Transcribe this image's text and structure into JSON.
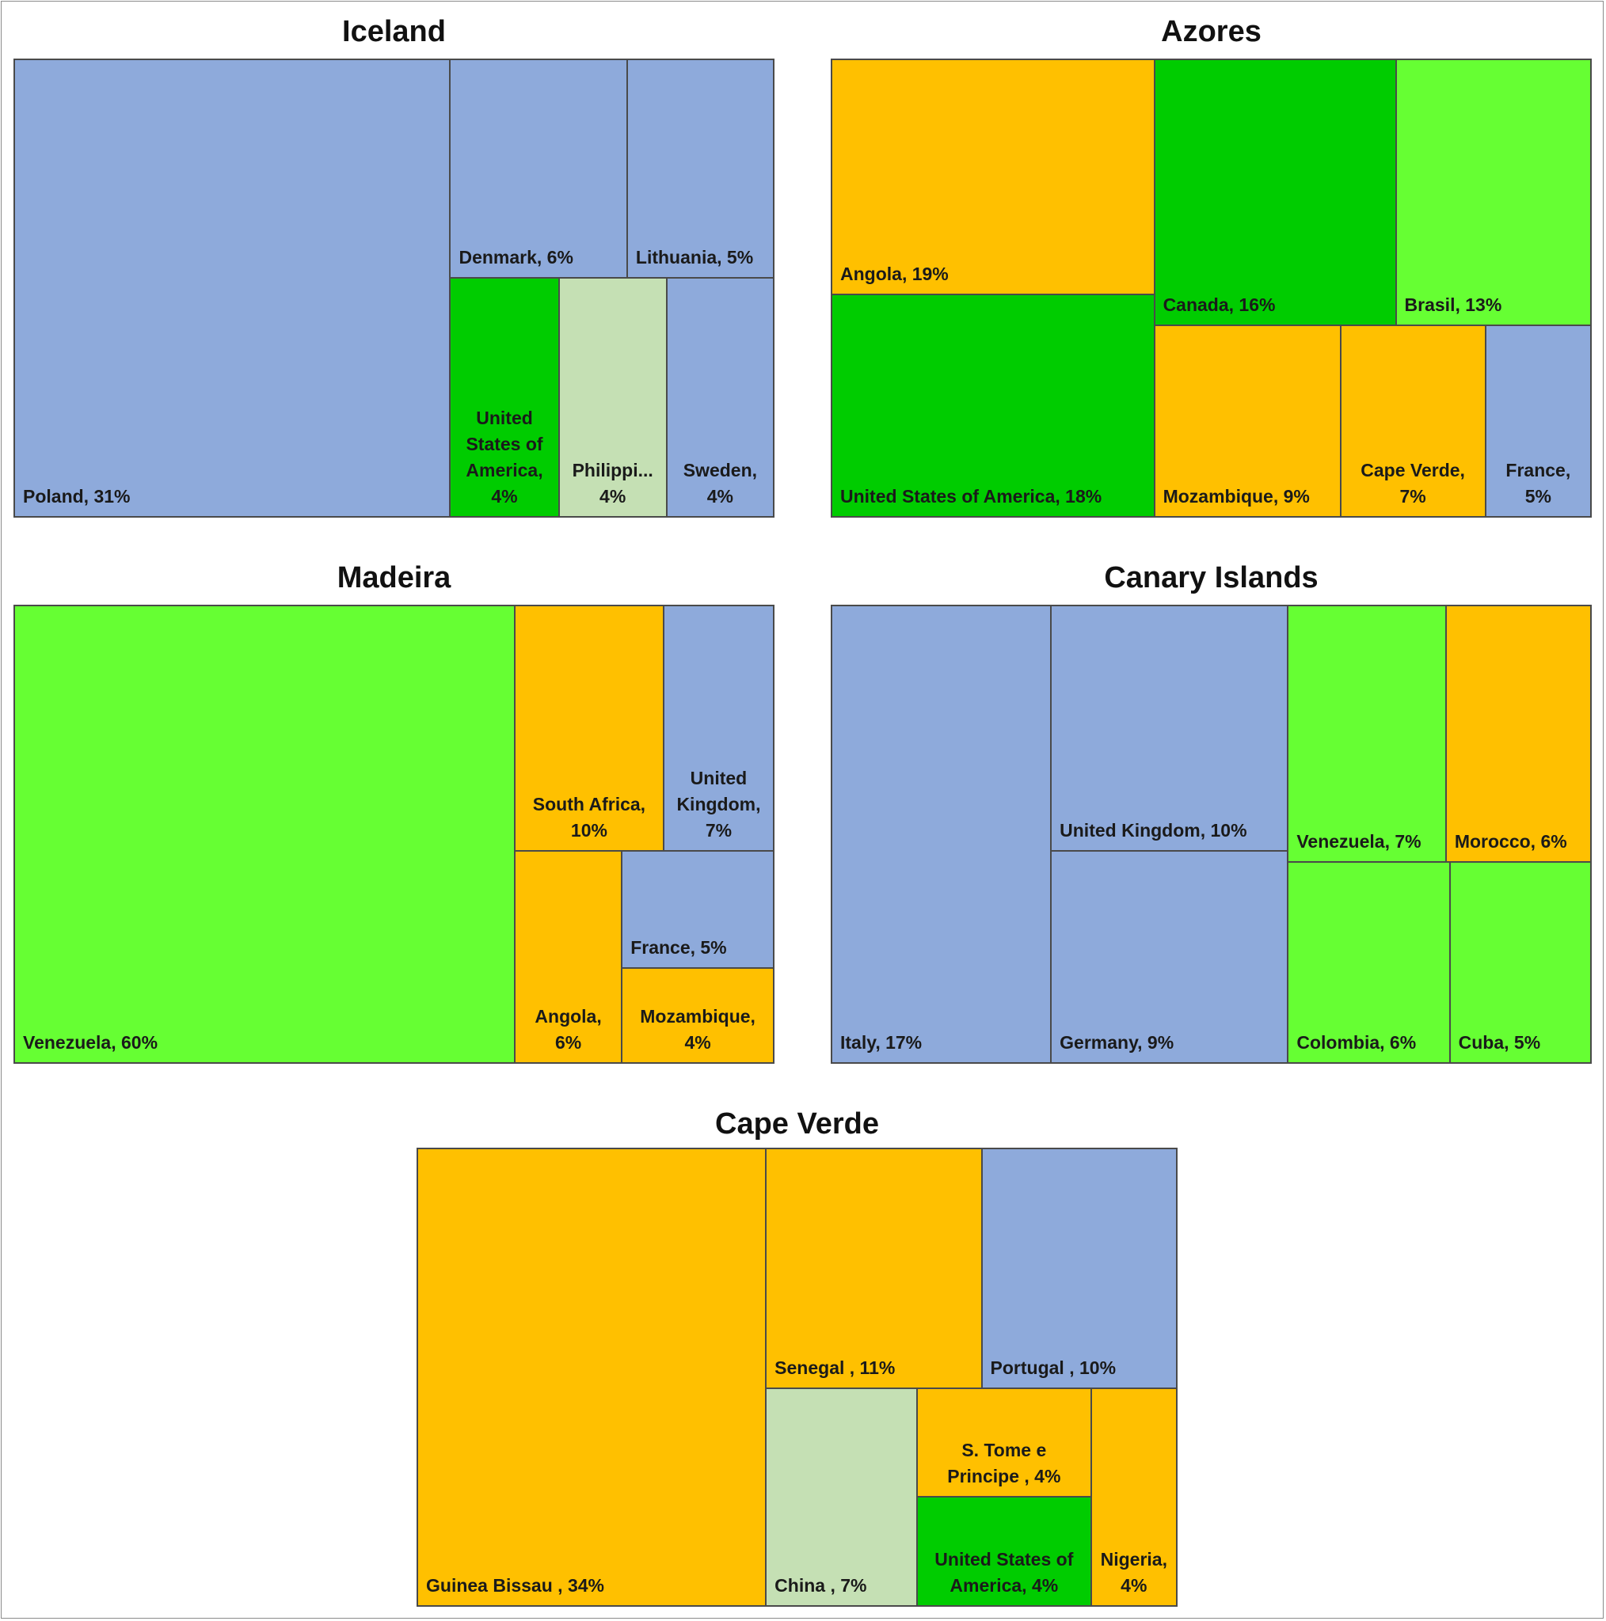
{
  "colors": {
    "blue": "#8eaadb",
    "orange": "#ffc000",
    "green_dark": "#00cc00",
    "green_light": "#66ff33",
    "green_pale": "#c5e0b4"
  },
  "chart_data": [
    {
      "type": "treemap",
      "title": "Iceland",
      "items": [
        {
          "label": "Poland, 31%",
          "name": "Poland",
          "value": 31,
          "color": "blue"
        },
        {
          "label": "Denmark, 6%",
          "name": "Denmark",
          "value": 6,
          "color": "blue"
        },
        {
          "label": "Lithuania, 5%",
          "name": "Lithuania",
          "value": 5,
          "color": "blue"
        },
        {
          "label": "United\nStates of\nAmerica,\n4%",
          "name": "United States of America",
          "value": 4,
          "color": "green_dark"
        },
        {
          "label": "Philippi...\n4%",
          "name": "Philippines",
          "value": 4,
          "color": "green_pale"
        },
        {
          "label": "Sweden,\n4%",
          "name": "Sweden",
          "value": 4,
          "color": "blue"
        }
      ]
    },
    {
      "type": "treemap",
      "title": "Azores",
      "items": [
        {
          "label": "Angola, 19%",
          "name": "Angola",
          "value": 19,
          "color": "orange"
        },
        {
          "label": "United States of America, 18%",
          "name": "United States of America",
          "value": 18,
          "color": "green_dark"
        },
        {
          "label": "Canada, 16%",
          "name": "Canada",
          "value": 16,
          "color": "green_dark"
        },
        {
          "label": "Brasil, 13%",
          "name": "Brasil",
          "value": 13,
          "color": "green_light"
        },
        {
          "label": "Mozambique, 9%",
          "name": "Mozambique",
          "value": 9,
          "color": "orange"
        },
        {
          "label": "Cape Verde,\n7%",
          "name": "Cape Verde",
          "value": 7,
          "color": "orange"
        },
        {
          "label": "France,\n5%",
          "name": "France",
          "value": 5,
          "color": "blue"
        }
      ]
    },
    {
      "type": "treemap",
      "title": "Madeira",
      "items": [
        {
          "label": "Venezuela, 60%",
          "name": "Venezuela",
          "value": 60,
          "color": "green_light"
        },
        {
          "label": "South Africa,\n10%",
          "name": "South Africa",
          "value": 10,
          "color": "orange"
        },
        {
          "label": "United\nKingdom,\n7%",
          "name": "United Kingdom",
          "value": 7,
          "color": "blue"
        },
        {
          "label": "Angola,\n6%",
          "name": "Angola",
          "value": 6,
          "color": "orange"
        },
        {
          "label": "France, 5%",
          "name": "France",
          "value": 5,
          "color": "blue"
        },
        {
          "label": "Mozambique,\n4%",
          "name": "Mozambique",
          "value": 4,
          "color": "orange"
        }
      ]
    },
    {
      "type": "treemap",
      "title": "Canary Islands",
      "items": [
        {
          "label": "Italy, 17%",
          "name": "Italy",
          "value": 17,
          "color": "blue"
        },
        {
          "label": "United Kingdom, 10%",
          "name": "United Kingdom",
          "value": 10,
          "color": "blue"
        },
        {
          "label": "Germany, 9%",
          "name": "Germany",
          "value": 9,
          "color": "blue"
        },
        {
          "label": "Venezuela, 7%",
          "name": "Venezuela",
          "value": 7,
          "color": "green_light"
        },
        {
          "label": "Morocco, 6%",
          "name": "Morocco",
          "value": 6,
          "color": "orange"
        },
        {
          "label": "Colombia, 6%",
          "name": "Colombia",
          "value": 6,
          "color": "green_light"
        },
        {
          "label": "Cuba, 5%",
          "name": "Cuba",
          "value": 5,
          "color": "green_light"
        }
      ]
    },
    {
      "type": "treemap",
      "title": "Cape Verde",
      "items": [
        {
          "label": "Guinea Bissau , 34%",
          "name": "Guinea Bissau",
          "value": 34,
          "color": "orange"
        },
        {
          "label": "Senegal , 11%",
          "name": "Senegal",
          "value": 11,
          "color": "orange"
        },
        {
          "label": "Portugal , 10%",
          "name": "Portugal",
          "value": 10,
          "color": "blue"
        },
        {
          "label": "China , 7%",
          "name": "China",
          "value": 7,
          "color": "green_pale"
        },
        {
          "label": "S. Tome e\nPrincipe , 4%",
          "name": "S. Tome e Principe",
          "value": 4,
          "color": "orange"
        },
        {
          "label": "United States of\nAmerica, 4%",
          "name": "United States of America",
          "value": 4,
          "color": "green_dark"
        },
        {
          "label": "Nigeria,\n4%",
          "name": "Nigeria",
          "value": 4,
          "color": "orange"
        }
      ]
    }
  ]
}
